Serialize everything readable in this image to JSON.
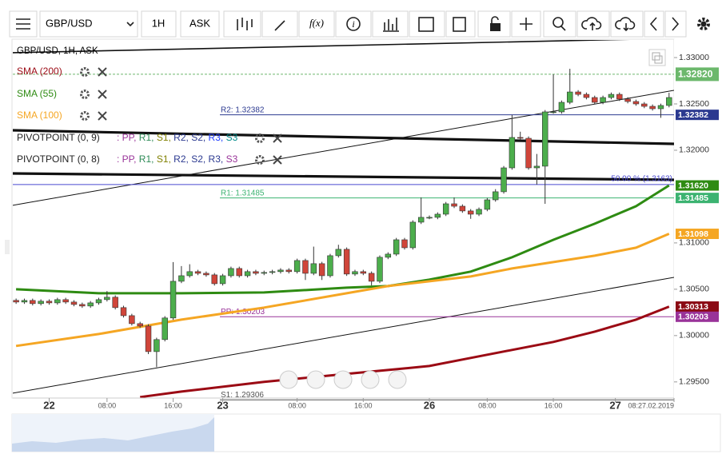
{
  "toolbar": {
    "symbol": "GBP/USD",
    "timeframe": "1H",
    "price_type": "ASK",
    "fx": "f(x)",
    "info": "i"
  },
  "chart_data": {
    "type": "candlestick",
    "title": "GBP/USD, 1H, ASK",
    "open": [
      1.3038,
      1.30362,
      1.30379,
      1.30345,
      1.30371,
      1.30353,
      1.30388,
      1.30362,
      1.30336,
      1.30319,
      1.30353,
      1.30388,
      1.30414,
      1.30302,
      1.30215,
      1.30129,
      1.30103,
      1.29827,
      1.29957,
      1.3019,
      1.30586,
      1.30646,
      1.3069,
      1.30672,
      1.30655,
      1.3056,
      1.30646,
      1.30724,
      1.30646,
      1.3069,
      1.30672,
      1.30681,
      1.3069,
      1.30707,
      1.3069,
      1.3081,
      1.30672,
      1.30776,
      1.30646,
      1.30862,
      1.30931,
      1.30664,
      1.3069,
      1.30672,
      1.30586,
      1.30845,
      1.30879,
      1.31034,
      1.30948,
      1.31224,
      1.31276,
      1.31276,
      1.3131,
      1.31422,
      1.31396,
      1.31345,
      1.3131,
      1.31362,
      1.31465,
      1.31552,
      1.3181,
      1.32138,
      1.32129,
      1.3181,
      1.31828,
      1.32414,
      1.32414,
      1.32517,
      1.32629,
      1.32603,
      1.32569,
      1.32517,
      1.32569,
      1.32603,
      1.32552,
      1.32526,
      1.325,
      1.32474,
      1.32448,
      1.32483
    ],
    "high": [
      1.304,
      1.30399,
      1.30399,
      1.30391,
      1.30391,
      1.30408,
      1.30408,
      1.30382,
      1.30356,
      1.30373,
      1.30408,
      1.3048,
      1.30434,
      1.30322,
      1.30235,
      1.30149,
      1.30123,
      1.29977,
      1.3021,
      1.30793,
      1.3075,
      1.3077,
      1.3071,
      1.30692,
      1.30675,
      1.30666,
      1.30744,
      1.30744,
      1.3071,
      1.3071,
      1.30701,
      1.3071,
      1.30727,
      1.30727,
      1.3083,
      1.3083,
      1.3096,
      1.30796,
      1.30882,
      1.3098,
      1.30951,
      1.3071,
      1.3071,
      1.30692,
      1.30865,
      1.30899,
      1.31054,
      1.31054,
      1.31244,
      1.31491,
      1.31296,
      1.3133,
      1.31442,
      1.31491,
      1.31416,
      1.31365,
      1.31382,
      1.31485,
      1.3158,
      1.3183,
      1.3238,
      1.322,
      1.32149,
      1.3196,
      1.32434,
      1.32819,
      1.32537,
      1.32879,
      1.32649,
      1.32623,
      1.32589,
      1.32589,
      1.32623,
      1.32623,
      1.32572,
      1.32546,
      1.3252,
      1.32494,
      1.32503,
      1.3262
    ],
    "low": [
      1.30342,
      1.30342,
      1.30325,
      1.30325,
      1.30333,
      1.30333,
      1.30342,
      1.30316,
      1.30299,
      1.30299,
      1.30333,
      1.30368,
      1.30282,
      1.30195,
      1.30109,
      1.30083,
      1.298,
      1.2966,
      1.29937,
      1.3017,
      1.30566,
      1.30626,
      1.30652,
      1.30635,
      1.3054,
      1.3054,
      1.30626,
      1.30626,
      1.30626,
      1.30652,
      1.30652,
      1.30661,
      1.3067,
      1.3067,
      1.3067,
      1.306,
      1.30652,
      1.306,
      1.30626,
      1.30842,
      1.30644,
      1.30644,
      1.30652,
      1.3054,
      1.30566,
      1.30825,
      1.30859,
      1.30928,
      1.30928,
      1.31204,
      1.31256,
      1.31256,
      1.3129,
      1.31376,
      1.31325,
      1.3126,
      1.3129,
      1.31342,
      1.31445,
      1.31532,
      1.3179,
      1.32109,
      1.3179,
      1.3163,
      1.31422,
      1.32394,
      1.32394,
      1.32497,
      1.32583,
      1.32549,
      1.32497,
      1.32497,
      1.32549,
      1.32532,
      1.32506,
      1.3248,
      1.32454,
      1.32428,
      1.3235,
      1.32463
    ],
    "close": [
      1.30362,
      1.30379,
      1.30345,
      1.30371,
      1.30353,
      1.30388,
      1.30362,
      1.30336,
      1.30319,
      1.30353,
      1.30388,
      1.30414,
      1.30302,
      1.30215,
      1.30129,
      1.30103,
      1.29827,
      1.29957,
      1.3019,
      1.30586,
      1.30646,
      1.3069,
      1.30672,
      1.30655,
      1.3056,
      1.30646,
      1.30724,
      1.30646,
      1.3069,
      1.30672,
      1.30681,
      1.3069,
      1.30707,
      1.3069,
      1.3081,
      1.30672,
      1.30776,
      1.30646,
      1.30862,
      1.30931,
      1.30664,
      1.3069,
      1.30672,
      1.30586,
      1.30845,
      1.30879,
      1.31034,
      1.30948,
      1.31224,
      1.31276,
      1.31276,
      1.3131,
      1.31422,
      1.31396,
      1.31345,
      1.3131,
      1.31362,
      1.31465,
      1.31552,
      1.3181,
      1.32138,
      1.32129,
      1.3181,
      1.31828,
      1.32414,
      1.32414,
      1.32517,
      1.32629,
      1.32603,
      1.32569,
      1.32517,
      1.32569,
      1.32603,
      1.32552,
      1.32526,
      1.325,
      1.32474,
      1.32448,
      1.32483,
      1.32569
    ],
    "up_color": "#4cae4c",
    "down_color": "#d0453a",
    "wick_color": "#333333",
    "xlim": [
      -0.4,
      79.6
    ],
    "xticks": [
      {
        "value": 4,
        "label": "22"
      },
      {
        "value": 11,
        "label": "08:00"
      },
      {
        "value": 19,
        "label": "16:00"
      },
      {
        "value": 25,
        "label": "23"
      },
      {
        "value": 34,
        "label": "08:00"
      },
      {
        "value": 42,
        "label": "16:00"
      },
      {
        "value": 50,
        "label": "26"
      },
      {
        "value": 57,
        "label": "08:00"
      },
      {
        "value": 65,
        "label": "16:00"
      },
      {
        "value": 72.5,
        "label": "27"
      },
      {
        "value": 79.6,
        "label": "08:27.02.2019"
      }
    ],
    "ylim": [
      1.293,
      1.3319
    ],
    "yticks": [
      {
        "value": 1.33,
        "label": "1.33000"
      },
      {
        "value": 1.325,
        "label": "1.32500"
      },
      {
        "value": 1.32,
        "label": "1.32000"
      },
      {
        "value": 1.31,
        "label": "1.31000"
      },
      {
        "value": 1.305,
        "label": "1.30500"
      },
      {
        "value": 1.3,
        "label": "1.30000"
      },
      {
        "value": 1.295,
        "label": "1.29500"
      }
    ],
    "grid": false,
    "series": [
      {
        "name": "SMA (200)",
        "color": "#9b0a14",
        "x": [
          15,
          20,
          30,
          40,
          45,
          50,
          55,
          60,
          65,
          70,
          75,
          79
        ],
        "values": [
          1.29336,
          1.29396,
          1.295,
          1.29586,
          1.29629,
          1.29672,
          1.29759,
          1.29845,
          1.29931,
          1.30043,
          1.30172,
          1.30313
        ]
      },
      {
        "name": "SMA (55)",
        "color": "#2e8b12",
        "x": [
          0,
          10,
          20,
          30,
          40,
          45,
          50,
          55,
          60,
          65,
          70,
          75,
          79
        ],
        "values": [
          1.305,
          1.30457,
          1.30457,
          1.30465,
          1.30517,
          1.30534,
          1.30603,
          1.3069,
          1.30845,
          1.31034,
          1.31207,
          1.31396,
          1.3162
        ]
      },
      {
        "name": "SMA (100)",
        "color": "#f5a623",
        "x": [
          0,
          10,
          20,
          30,
          40,
          45,
          50,
          55,
          60,
          65,
          70,
          75,
          79
        ],
        "values": [
          1.29888,
          1.30017,
          1.30172,
          1.30302,
          1.30457,
          1.30534,
          1.30586,
          1.30638,
          1.30724,
          1.30793,
          1.30862,
          1.30948,
          1.31098
        ]
      }
    ],
    "indicator_rows": [
      {
        "name": "PIVOTPOINT (0, 9)",
        "parts": [
          {
            "text": ": PP, ",
            "color": "#993399"
          },
          {
            "text": "R1, ",
            "color": "#2e8b57"
          },
          {
            "text": "S1, ",
            "color": "#808000"
          },
          {
            "text": "R2, ",
            "color": "#2b3990"
          },
          {
            "text": "S2, ",
            "color": "#2b3990"
          },
          {
            "text": "R3, ",
            "color": "#1e3cff"
          },
          {
            "text": "S3",
            "color": "#008b8b"
          }
        ]
      },
      {
        "name": "PIVOTPOINT (0, 8)",
        "parts": [
          {
            "text": ": PP, ",
            "color": "#993399"
          },
          {
            "text": "R1, ",
            "color": "#2e8b57"
          },
          {
            "text": "S1, ",
            "color": "#808000"
          },
          {
            "text": "R2, ",
            "color": "#2b3990"
          },
          {
            "text": "S2, ",
            "color": "#2b3990"
          },
          {
            "text": "R3, ",
            "color": "#2b3990"
          },
          {
            "text": "S3",
            "color": "#993399"
          }
        ]
      }
    ],
    "pivots": [
      {
        "label": "R2: 1.32382",
        "value": 1.32382,
        "color": "#2b3990"
      },
      {
        "label": "R1: 1.31485",
        "value": 1.31485,
        "color": "#3cb371"
      },
      {
        "label": "PP: 1.30203",
        "value": 1.30203,
        "color": "#993399"
      },
      {
        "label": "S1: 1.29306",
        "value": 1.29306,
        "color": "#555555"
      }
    ],
    "fib": {
      "label": "50.00 % (1.3163)",
      "value": 1.3163,
      "color": "#4a4ad0"
    },
    "current_price": {
      "value": 1.3282,
      "color": "#6cb86c"
    },
    "axis_badges": [
      {
        "value": 1.3282,
        "label": "1.32820",
        "color": "#6cb86c"
      },
      {
        "value": 1.32382,
        "label": "1.32382",
        "color": "#2b3990"
      },
      {
        "value": 1.3162,
        "label": "1.31620",
        "color": "#2e8b12"
      },
      {
        "value": 1.31485,
        "label": "1.31485",
        "color": "#3cb371"
      },
      {
        "value": 1.31098,
        "label": "1.31098",
        "color": "#f5a623"
      },
      {
        "value": 1.30313,
        "label": "1.30313",
        "color": "#8b0a14"
      },
      {
        "value": 1.30203,
        "label": "1.30203",
        "color": "#993399"
      }
    ]
  }
}
